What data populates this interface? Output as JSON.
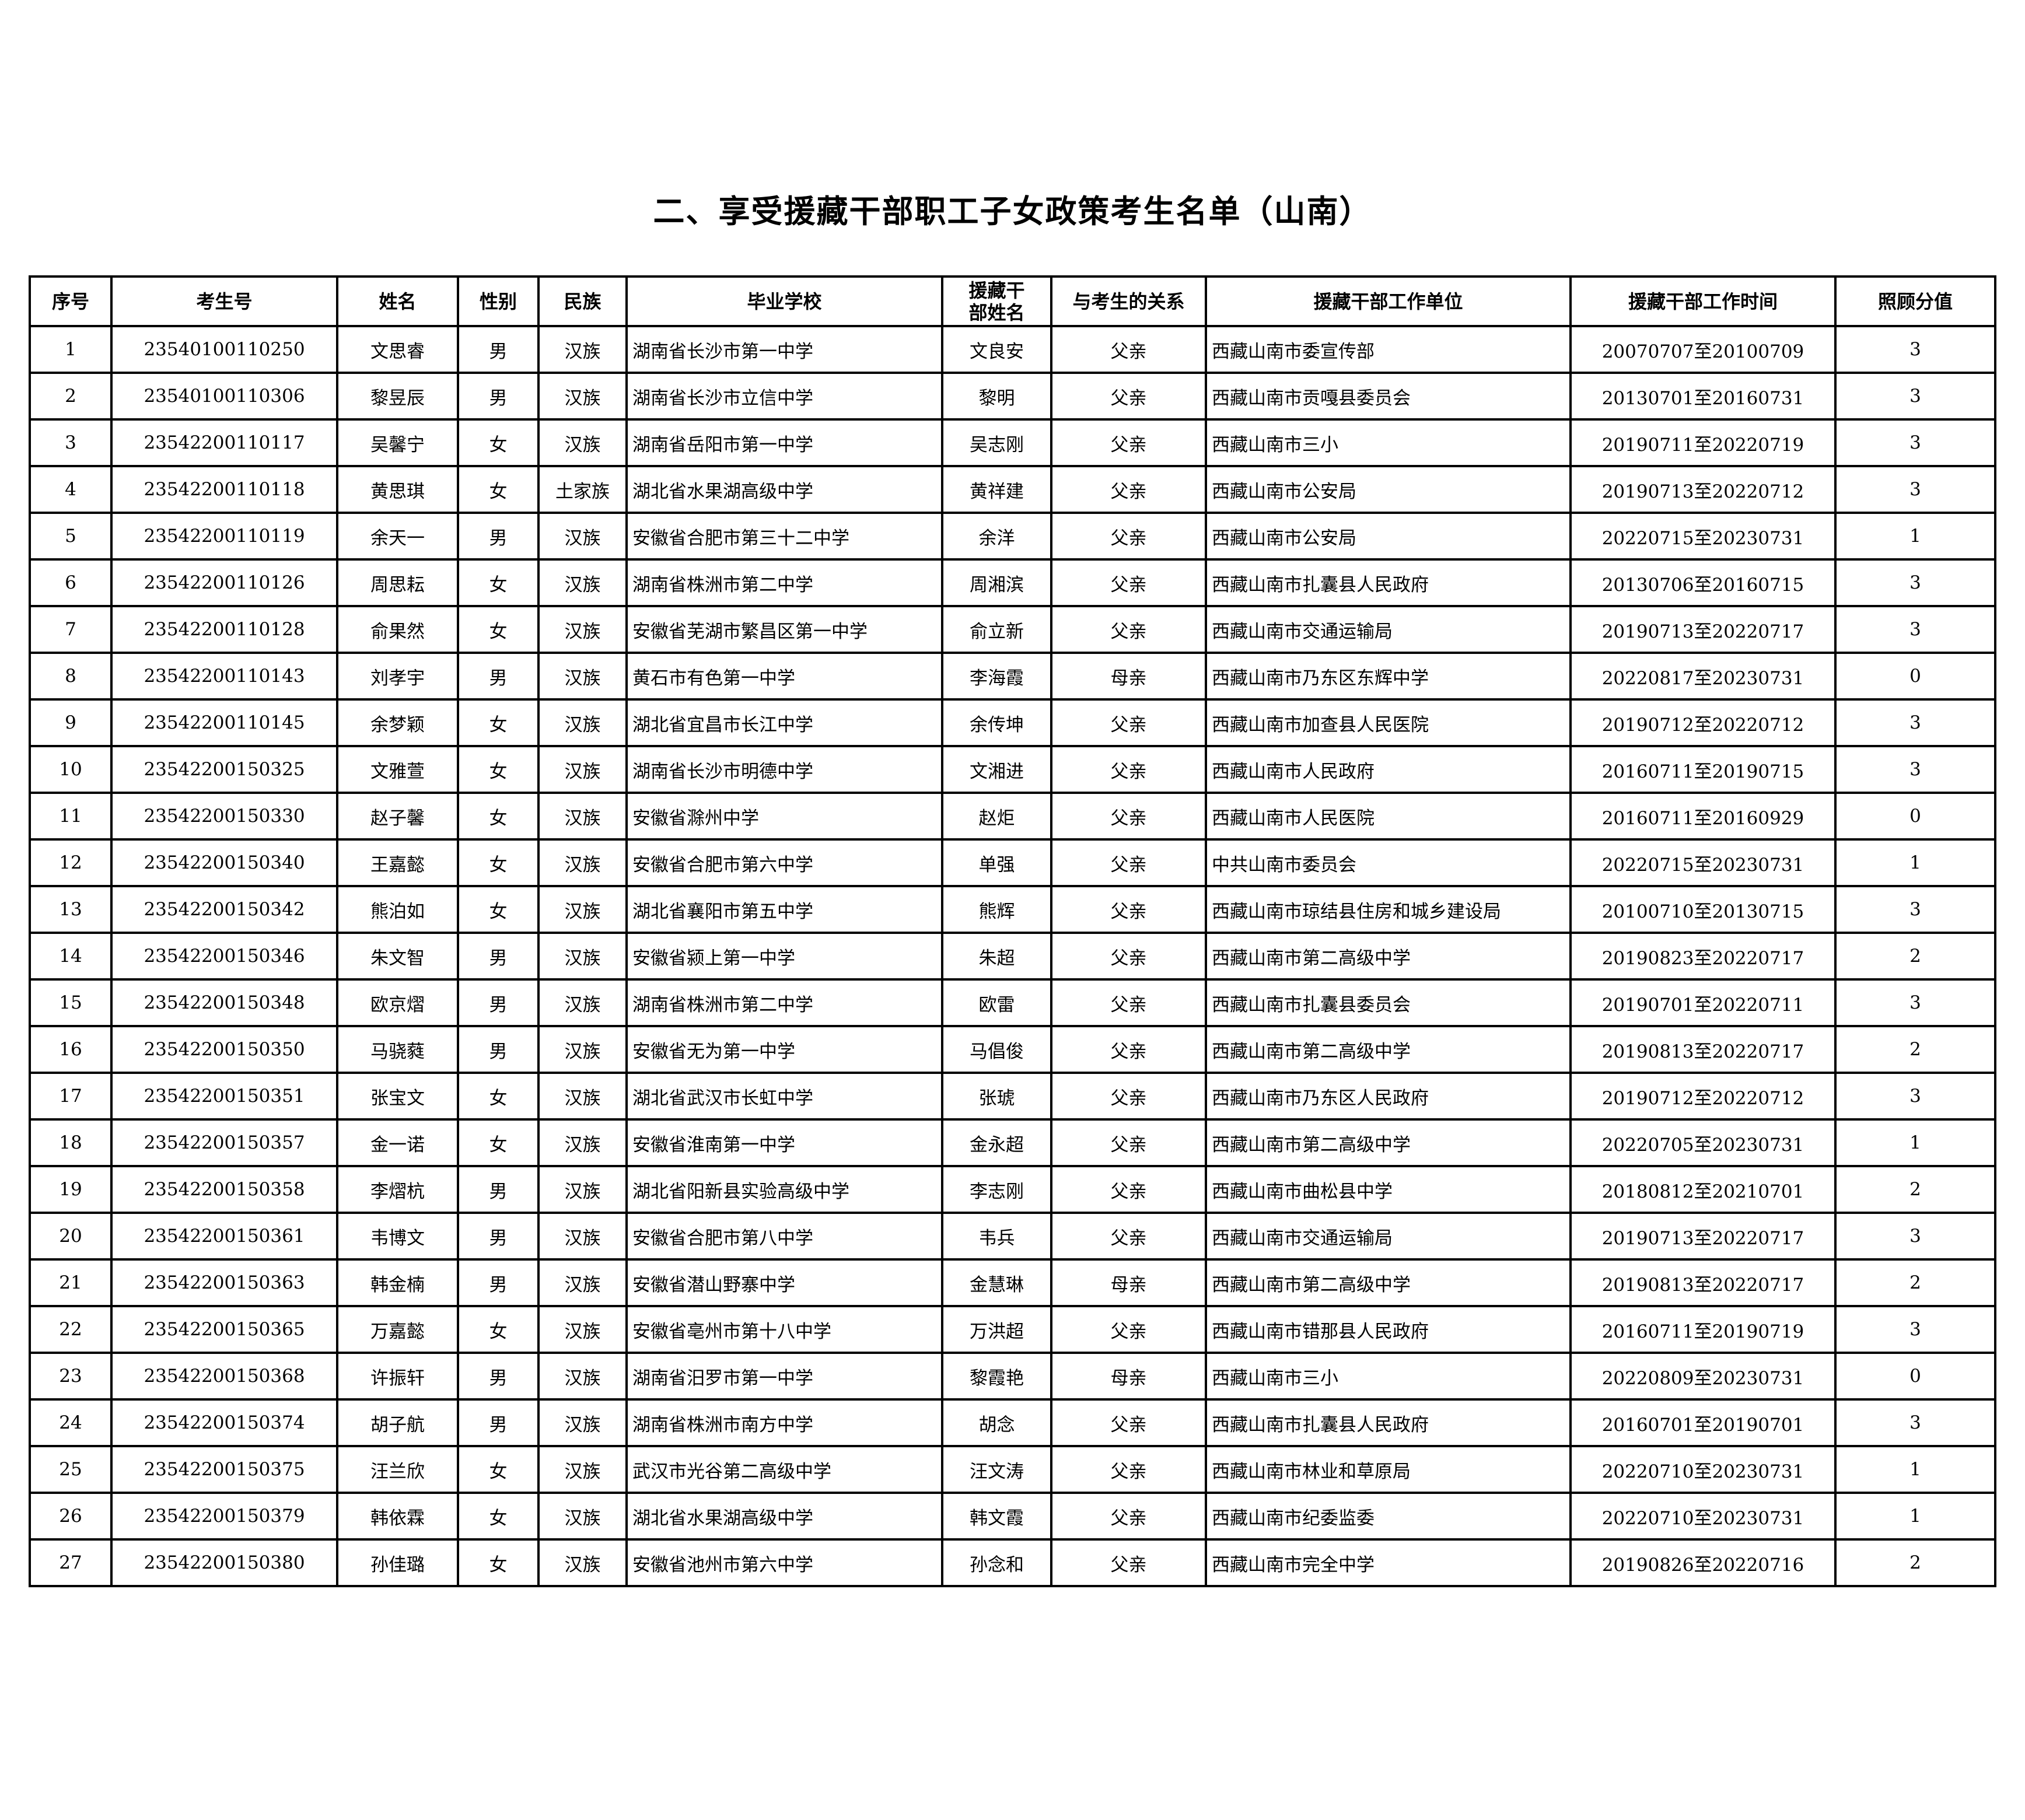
{
  "title": "二、享受援藏干部职工子女政策考生名单（山南）",
  "columns": [
    "序号",
    "考生号",
    "姓名",
    "性别",
    "民族",
    "毕业学校",
    "援藏干部姓名",
    "与考生的关系",
    "援藏干部工作单位",
    "援藏干部工作时间",
    "照顾分值"
  ],
  "rows": [
    [
      "1",
      "23540100110250",
      "文思睿",
      "男",
      "汉族",
      "湖南省长沙市第一中学",
      "文良安",
      "父亲",
      "西藏山南市委宣传部",
      "20070707至20100709",
      "3"
    ],
    [
      "2",
      "23540100110306",
      "黎昱辰",
      "男",
      "汉族",
      "湖南省长沙市立信中学",
      "黎明",
      "父亲",
      "西藏山南市贡嘎县委员会",
      "20130701至20160731",
      "3"
    ],
    [
      "3",
      "23542200110117",
      "吴馨宁",
      "女",
      "汉族",
      "湖南省岳阳市第一中学",
      "吴志刚",
      "父亲",
      "西藏山南市三小",
      "20190711至20220719",
      "3"
    ],
    [
      "4",
      "23542200110118",
      "黄思琪",
      "女",
      "土家族",
      "湖北省水果湖高级中学",
      "黄祥建",
      "父亲",
      "西藏山南市公安局",
      "20190713至20220712",
      "3"
    ],
    [
      "5",
      "23542200110119",
      "余天一",
      "男",
      "汉族",
      "安徽省合肥市第三十二中学",
      "余洋",
      "父亲",
      "西藏山南市公安局",
      "20220715至20230731",
      "1"
    ],
    [
      "6",
      "23542200110126",
      "周思耘",
      "女",
      "汉族",
      "湖南省株洲市第二中学",
      "周湘滨",
      "父亲",
      "西藏山南市扎囊县人民政府",
      "20130706至20160715",
      "3"
    ],
    [
      "7",
      "23542200110128",
      "俞果然",
      "女",
      "汉族",
      "安徽省芜湖市繁昌区第一中学",
      "俞立新",
      "父亲",
      "西藏山南市交通运输局",
      "20190713至20220717",
      "3"
    ],
    [
      "8",
      "23542200110143",
      "刘孝宇",
      "男",
      "汉族",
      "黄石市有色第一中学",
      "李海霞",
      "母亲",
      "西藏山南市乃东区东辉中学",
      "20220817至20230731",
      "0"
    ],
    [
      "9",
      "23542200110145",
      "余梦颖",
      "女",
      "汉族",
      "湖北省宜昌市长江中学",
      "余传坤",
      "父亲",
      "西藏山南市加查县人民医院",
      "20190712至20220712",
      "3"
    ],
    [
      "10",
      "23542200150325",
      "文雅萱",
      "女",
      "汉族",
      "湖南省长沙市明德中学",
      "文湘进",
      "父亲",
      "西藏山南市人民政府",
      "20160711至20190715",
      "3"
    ],
    [
      "11",
      "23542200150330",
      "赵子馨",
      "女",
      "汉族",
      "安徽省滁州中学",
      "赵炬",
      "父亲",
      "西藏山南市人民医院",
      "20160711至20160929",
      "0"
    ],
    [
      "12",
      "23542200150340",
      "王嘉懿",
      "女",
      "汉族",
      "安徽省合肥市第六中学",
      "单强",
      "父亲",
      "中共山南市委员会",
      "20220715至20230731",
      "1"
    ],
    [
      "13",
      "23542200150342",
      "熊泊如",
      "女",
      "汉族",
      "湖北省襄阳市第五中学",
      "熊辉",
      "父亲",
      "西藏山南市琼结县住房和城乡建设局",
      "20100710至20130715",
      "3"
    ],
    [
      "14",
      "23542200150346",
      "朱文智",
      "男",
      "汉族",
      "安徽省颍上第一中学",
      "朱超",
      "父亲",
      "西藏山南市第二高级中学",
      "20190823至20220717",
      "2"
    ],
    [
      "15",
      "23542200150348",
      "欧京熠",
      "男",
      "汉族",
      "湖南省株洲市第二中学",
      "欧雷",
      "父亲",
      "西藏山南市扎囊县委员会",
      "20190701至20220711",
      "3"
    ],
    [
      "16",
      "23542200150350",
      "马骁蕤",
      "男",
      "汉族",
      "安徽省无为第一中学",
      "马倡俊",
      "父亲",
      "西藏山南市第二高级中学",
      "20190813至20220717",
      "2"
    ],
    [
      "17",
      "23542200150351",
      "张宝文",
      "女",
      "汉族",
      "湖北省武汉市长虹中学",
      "张琥",
      "父亲",
      "西藏山南市乃东区人民政府",
      "20190712至20220712",
      "3"
    ],
    [
      "18",
      "23542200150357",
      "金一诺",
      "女",
      "汉族",
      "安徽省淮南第一中学",
      "金永超",
      "父亲",
      "西藏山南市第二高级中学",
      "20220705至20230731",
      "1"
    ],
    [
      "19",
      "23542200150358",
      "李熠杭",
      "男",
      "汉族",
      "湖北省阳新县实验高级中学",
      "李志刚",
      "父亲",
      "西藏山南市曲松县中学",
      "20180812至20210701",
      "2"
    ],
    [
      "20",
      "23542200150361",
      "韦博文",
      "男",
      "汉族",
      "安徽省合肥市第八中学",
      "韦兵",
      "父亲",
      "西藏山南市交通运输局",
      "20190713至20220717",
      "3"
    ],
    [
      "21",
      "23542200150363",
      "韩金楠",
      "男",
      "汉族",
      "安徽省潜山野寨中学",
      "金慧琳",
      "母亲",
      "西藏山南市第二高级中学",
      "20190813至20220717",
      "2"
    ],
    [
      "22",
      "23542200150365",
      "万嘉懿",
      "女",
      "汉族",
      "安徽省亳州市第十八中学",
      "万洪超",
      "父亲",
      "西藏山南市错那县人民政府",
      "20160711至20190719",
      "3"
    ],
    [
      "23",
      "23542200150368",
      "许振轩",
      "男",
      "汉族",
      "湖南省汨罗市第一中学",
      "黎霞艳",
      "母亲",
      "西藏山南市三小",
      "20220809至20230731",
      "0"
    ],
    [
      "24",
      "23542200150374",
      "胡子航",
      "男",
      "汉族",
      "湖南省株洲市南方中学",
      "胡念",
      "父亲",
      "西藏山南市扎囊县人民政府",
      "20160701至20190701",
      "3"
    ],
    [
      "25",
      "23542200150375",
      "汪兰欣",
      "女",
      "汉族",
      "武汉市光谷第二高级中学",
      "汪文涛",
      "父亲",
      "西藏山南市林业和草原局",
      "20220710至20230731",
      "1"
    ],
    [
      "26",
      "23542200150379",
      "韩依霖",
      "女",
      "汉族",
      "湖北省水果湖高级中学",
      "韩文霞",
      "父亲",
      "西藏山南市纪委监委",
      "20220710至20230731",
      "1"
    ],
    [
      "27",
      "23542200150380",
      "孙佳璐",
      "女",
      "汉族",
      "安徽省池州市第六中学",
      "孙念和",
      "父亲",
      "西藏山南市完全中学",
      "20190826至20220716",
      "2"
    ]
  ]
}
